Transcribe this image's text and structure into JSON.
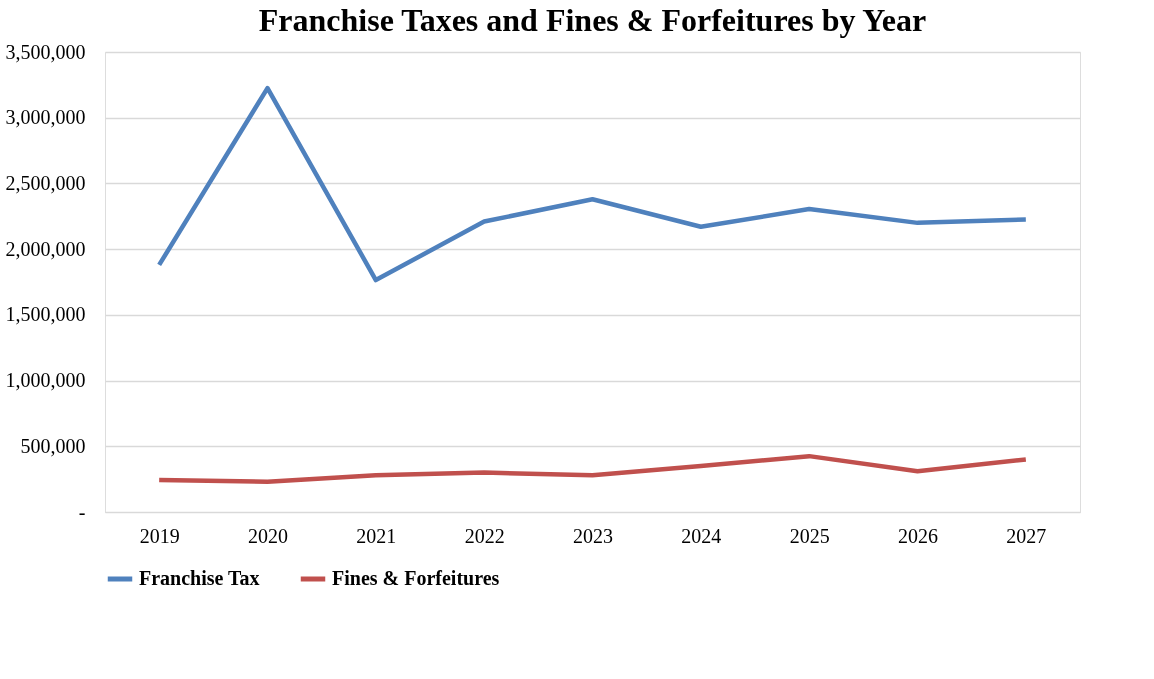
{
  "chart_data": {
    "type": "line",
    "title": "Franchise Taxes and Fines & Forfeitures by Year",
    "categories": [
      "2019",
      "2020",
      "2021",
      "2022",
      "2023",
      "2024",
      "2025",
      "2026",
      "2027"
    ],
    "series": [
      {
        "name": "Franchise Tax",
        "color": "#4f81bd",
        "values": [
          1880000,
          3225000,
          1765000,
          2210000,
          2380000,
          2170000,
          2305000,
          2200000,
          2225000
        ]
      },
      {
        "name": "Fines & Forfeitures",
        "color": "#c0504d",
        "values": [
          243000,
          230000,
          280000,
          300000,
          280000,
          350000,
          425000,
          310000,
          400000
        ]
      }
    ],
    "ylim": [
      0,
      3500000
    ],
    "yticks": [
      {
        "value": 0,
        "label": "-"
      },
      {
        "value": 500000,
        "label": "500,000"
      },
      {
        "value": 1000000,
        "label": "1,000,000"
      },
      {
        "value": 1500000,
        "label": "1,500,000"
      },
      {
        "value": 2000000,
        "label": "2,000,000"
      },
      {
        "value": 2500000,
        "label": "2,500,000"
      },
      {
        "value": 3000000,
        "label": "3,000,000"
      },
      {
        "value": 3500000,
        "label": "3,500,000"
      }
    ],
    "grid": "y",
    "legend": "bottom",
    "marker": "none",
    "line_style": "solid"
  }
}
